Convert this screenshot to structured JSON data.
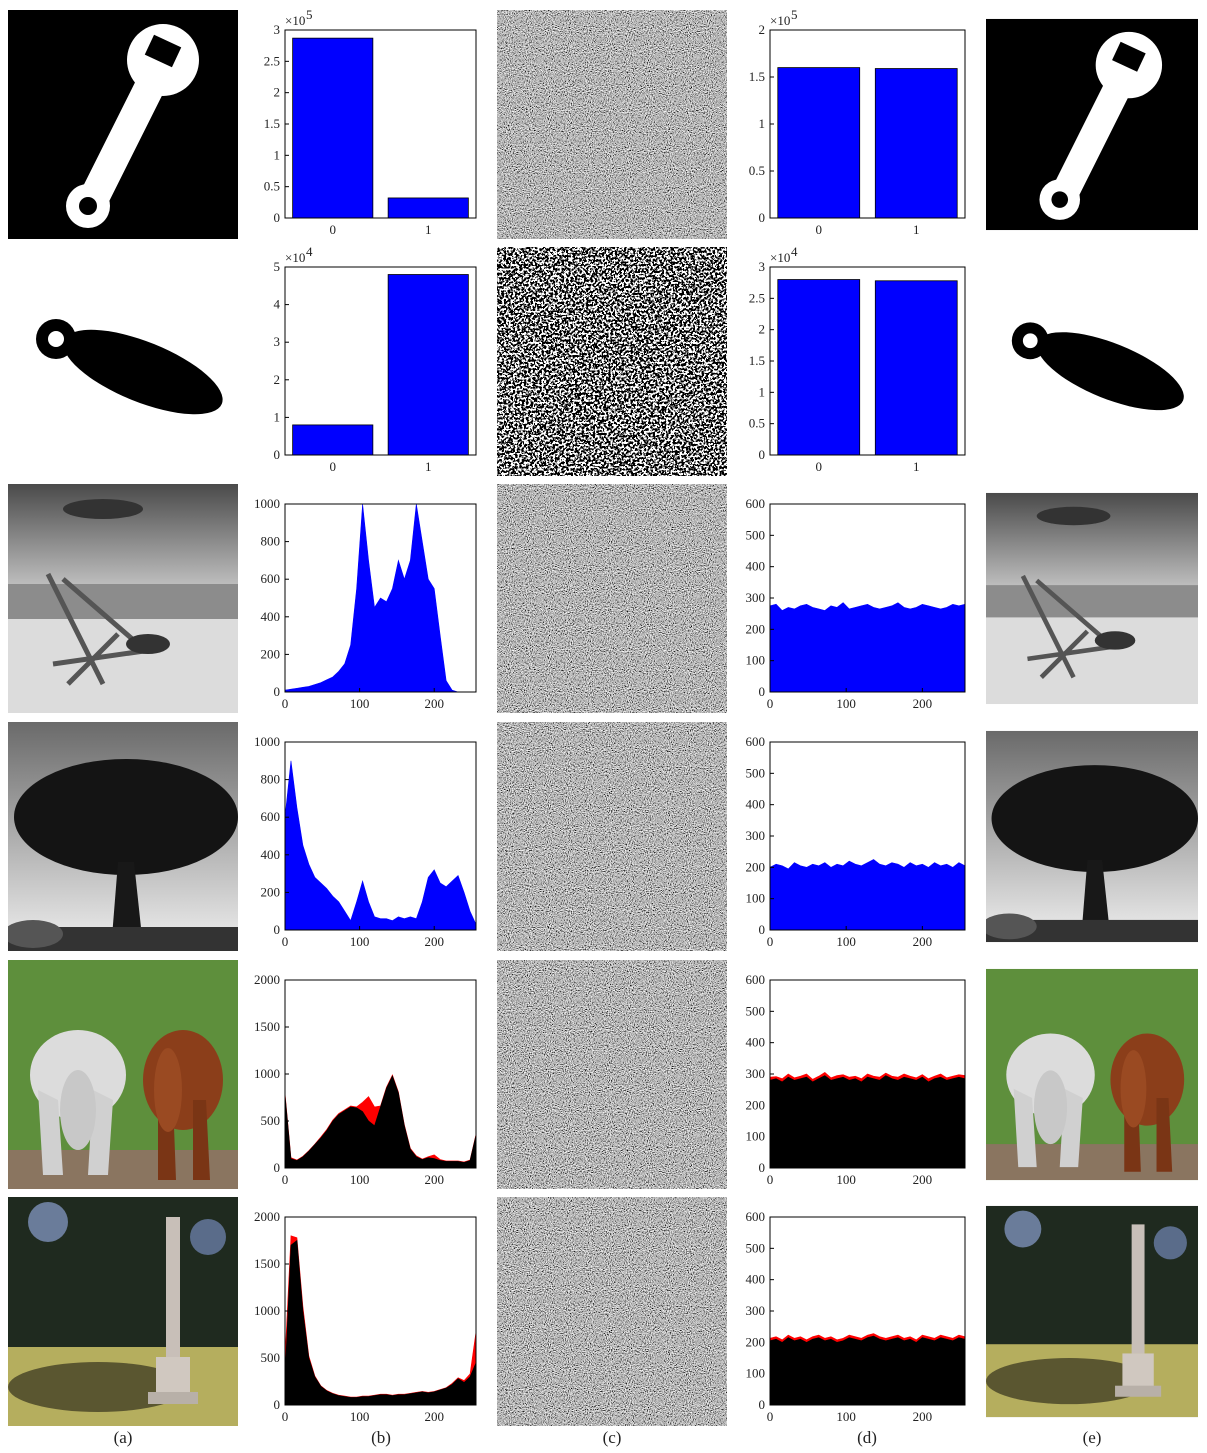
{
  "column_labels": [
    "(a)",
    "(b)",
    "(c)",
    "(d)",
    "(e)"
  ],
  "chart_data": [
    {
      "type": "bar",
      "categories": [
        "0",
        "1"
      ],
      "values": [
        2.87,
        0.32
      ],
      "color": "#0000ff",
      "ylim": [
        0,
        3
      ],
      "yticks": [
        0,
        0.5,
        1,
        1.5,
        2,
        2.5,
        3
      ],
      "y_multiplier": "×10",
      "y_multiplier_exponent": "5"
    },
    {
      "type": "bar",
      "categories": [
        "0",
        "1"
      ],
      "values": [
        1.6,
        1.59
      ],
      "color": "#0000ff",
      "ylim": [
        0,
        2
      ],
      "yticks": [
        0,
        0.5,
        1,
        1.5,
        2
      ],
      "y_multiplier": "×10",
      "y_multiplier_exponent": "5"
    },
    {
      "type": "bar",
      "categories": [
        "0",
        "1"
      ],
      "values": [
        0.8,
        4.8
      ],
      "color": "#0000ff",
      "ylim": [
        0,
        5
      ],
      "yticks": [
        0,
        1,
        2,
        3,
        4,
        5
      ],
      "y_multiplier": "×10",
      "y_multiplier_exponent": "4"
    },
    {
      "type": "bar",
      "categories": [
        "0",
        "1"
      ],
      "values": [
        2.8,
        2.78
      ],
      "color": "#0000ff",
      "ylim": [
        0,
        3
      ],
      "yticks": [
        0,
        0.5,
        1,
        1.5,
        2,
        2.5,
        3
      ],
      "y_multiplier": "×10",
      "y_multiplier_exponent": "4"
    },
    {
      "type": "area",
      "x": [
        0,
        8,
        16,
        24,
        32,
        40,
        48,
        56,
        64,
        72,
        80,
        88,
        96,
        104,
        112,
        120,
        128,
        136,
        144,
        152,
        160,
        168,
        176,
        184,
        192,
        200,
        208,
        216,
        224,
        232,
        240,
        248,
        256
      ],
      "xlim": [
        0,
        256
      ],
      "xticks": [
        0,
        100,
        200
      ],
      "ylim": [
        0,
        1000
      ],
      "yticks": [
        0,
        200,
        400,
        600,
        800,
        1000
      ],
      "series": [
        {
          "color": "#0000ff",
          "values": [
            10,
            15,
            20,
            25,
            30,
            40,
            50,
            65,
            80,
            110,
            150,
            250,
            550,
            1000,
            700,
            450,
            500,
            480,
            550,
            700,
            600,
            700,
            1000,
            800,
            600,
            550,
            300,
            60,
            10,
            0,
            0,
            0,
            0
          ]
        }
      ]
    },
    {
      "type": "area",
      "x": [
        0,
        8,
        16,
        24,
        32,
        40,
        48,
        56,
        64,
        72,
        80,
        88,
        96,
        104,
        112,
        120,
        128,
        136,
        144,
        152,
        160,
        168,
        176,
        184,
        192,
        200,
        208,
        216,
        224,
        232,
        240,
        248,
        256
      ],
      "xlim": [
        0,
        256
      ],
      "xticks": [
        0,
        100,
        200
      ],
      "ylim": [
        0,
        600
      ],
      "yticks": [
        0,
        100,
        200,
        300,
        400,
        500,
        600
      ],
      "series": [
        {
          "color": "#0000ff",
          "values": [
            275,
            280,
            260,
            270,
            265,
            275,
            280,
            270,
            265,
            260,
            275,
            270,
            285,
            265,
            270,
            275,
            280,
            270,
            265,
            270,
            275,
            285,
            270,
            265,
            270,
            280,
            275,
            270,
            265,
            270,
            280,
            275,
            280
          ]
        }
      ]
    },
    {
      "type": "area",
      "x": [
        0,
        8,
        16,
        24,
        32,
        40,
        48,
        56,
        64,
        72,
        80,
        88,
        96,
        104,
        112,
        120,
        128,
        136,
        144,
        152,
        160,
        168,
        176,
        184,
        192,
        200,
        208,
        216,
        224,
        232,
        240,
        248,
        256
      ],
      "xlim": [
        0,
        256
      ],
      "xticks": [
        0,
        100,
        200
      ],
      "ylim": [
        0,
        1000
      ],
      "yticks": [
        0,
        200,
        400,
        600,
        800,
        1000
      ],
      "series": [
        {
          "color": "#0000ff",
          "values": [
            600,
            900,
            650,
            450,
            350,
            280,
            250,
            220,
            180,
            150,
            100,
            50,
            150,
            260,
            150,
            70,
            60,
            60,
            50,
            70,
            60,
            70,
            60,
            150,
            280,
            320,
            250,
            230,
            260,
            290,
            200,
            100,
            30
          ]
        }
      ]
    },
    {
      "type": "area",
      "x": [
        0,
        8,
        16,
        24,
        32,
        40,
        48,
        56,
        64,
        72,
        80,
        88,
        96,
        104,
        112,
        120,
        128,
        136,
        144,
        152,
        160,
        168,
        176,
        184,
        192,
        200,
        208,
        216,
        224,
        232,
        240,
        248,
        256
      ],
      "xlim": [
        0,
        256
      ],
      "xticks": [
        0,
        100,
        200
      ],
      "ylim": [
        0,
        600
      ],
      "yticks": [
        0,
        100,
        200,
        300,
        400,
        500,
        600
      ],
      "series": [
        {
          "color": "#0000ff",
          "values": [
            200,
            210,
            205,
            195,
            215,
            205,
            200,
            210,
            205,
            215,
            200,
            210,
            205,
            220,
            210,
            205,
            215,
            225,
            210,
            205,
            215,
            210,
            200,
            215,
            205,
            210,
            200,
            215,
            205,
            210,
            200,
            215,
            205
          ]
        }
      ]
    },
    {
      "type": "area",
      "x": [
        0,
        8,
        16,
        24,
        32,
        40,
        48,
        56,
        64,
        72,
        80,
        88,
        96,
        104,
        112,
        120,
        128,
        136,
        144,
        152,
        160,
        168,
        176,
        184,
        192,
        200,
        208,
        216,
        224,
        232,
        240,
        248,
        256
      ],
      "xlim": [
        0,
        256
      ],
      "xticks": [
        0,
        100,
        200
      ],
      "ylim": [
        0,
        2000
      ],
      "yticks": [
        0,
        500,
        1000,
        1500,
        2000
      ],
      "series": [
        {
          "color": "#ff0000",
          "values": [
            800,
            110,
            85,
            125,
            185,
            255,
            330,
            410,
            510,
            580,
            620,
            660,
            650,
            700,
            760,
            650,
            660,
            860,
            990,
            810,
            460,
            210,
            130,
            95,
            120,
            140,
            90,
            75,
            75,
            75,
            65,
            85,
            360
          ]
        },
        {
          "color": "#000000",
          "values": [
            780,
            100,
            80,
            120,
            180,
            250,
            320,
            400,
            500,
            570,
            610,
            650,
            640,
            600,
            500,
            450,
            650,
            850,
            980,
            800,
            450,
            200,
            120,
            90,
            110,
            100,
            80,
            70,
            70,
            70,
            60,
            80,
            350
          ]
        }
      ]
    },
    {
      "type": "area",
      "x": [
        0,
        8,
        16,
        24,
        32,
        40,
        48,
        56,
        64,
        72,
        80,
        88,
        96,
        104,
        112,
        120,
        128,
        136,
        144,
        152,
        160,
        168,
        176,
        184,
        192,
        200,
        208,
        216,
        224,
        232,
        240,
        248,
        256
      ],
      "xlim": [
        0,
        256
      ],
      "xticks": [
        0,
        100,
        200
      ],
      "ylim": [
        0,
        600
      ],
      "yticks": [
        0,
        100,
        200,
        300,
        400,
        500,
        600
      ],
      "series": [
        {
          "color": "#ff0000",
          "values": [
            290,
            292,
            285,
            300,
            288,
            293,
            300,
            283,
            293,
            305,
            288,
            295,
            298,
            290,
            293,
            285,
            300,
            293,
            290,
            303,
            293,
            290,
            300,
            293,
            288,
            298,
            285,
            293,
            300,
            288,
            293,
            298,
            295
          ]
        },
        {
          "color": "#000000",
          "values": [
            280,
            285,
            275,
            290,
            280,
            285,
            290,
            275,
            285,
            295,
            280,
            285,
            290,
            280,
            285,
            275,
            290,
            285,
            280,
            295,
            285,
            280,
            290,
            285,
            280,
            290,
            275,
            285,
            290,
            280,
            285,
            290,
            285
          ]
        }
      ]
    },
    {
      "type": "area",
      "x": [
        0,
        8,
        16,
        24,
        32,
        40,
        48,
        56,
        64,
        72,
        80,
        88,
        96,
        104,
        112,
        120,
        128,
        136,
        144,
        152,
        160,
        168,
        176,
        184,
        192,
        200,
        208,
        216,
        224,
        232,
        240,
        248,
        256
      ],
      "xlim": [
        0,
        256
      ],
      "xticks": [
        0,
        100,
        200
      ],
      "ylim": [
        0,
        2000
      ],
      "yticks": [
        0,
        500,
        1000,
        1500,
        2000
      ],
      "series": [
        {
          "color": "#ff0000",
          "values": [
            500,
            1800,
            1780,
            1050,
            520,
            310,
            205,
            155,
            125,
            105,
            95,
            85,
            85,
            95,
            95,
            105,
            115,
            115,
            105,
            115,
            115,
            125,
            135,
            145,
            135,
            145,
            165,
            185,
            230,
            290,
            260,
            330,
            780
          ]
        },
        {
          "color": "#000000",
          "values": [
            300,
            1700,
            1750,
            1000,
            500,
            300,
            200,
            150,
            120,
            100,
            90,
            80,
            80,
            90,
            90,
            100,
            110,
            110,
            100,
            110,
            110,
            120,
            130,
            140,
            130,
            140,
            160,
            180,
            220,
            280,
            240,
            300,
            450
          ]
        }
      ]
    },
    {
      "type": "area",
      "x": [
        0,
        8,
        16,
        24,
        32,
        40,
        48,
        56,
        64,
        72,
        80,
        88,
        96,
        104,
        112,
        120,
        128,
        136,
        144,
        152,
        160,
        168,
        176,
        184,
        192,
        200,
        208,
        216,
        224,
        232,
        240,
        248,
        256
      ],
      "xlim": [
        0,
        256
      ],
      "xticks": [
        0,
        100,
        200
      ],
      "ylim": [
        0,
        600
      ],
      "yticks": [
        0,
        100,
        200,
        300,
        400,
        500,
        600
      ],
      "series": [
        {
          "color": "#ff0000",
          "values": [
            213,
            218,
            208,
            223,
            213,
            218,
            208,
            218,
            223,
            213,
            218,
            208,
            213,
            223,
            218,
            213,
            223,
            228,
            218,
            213,
            218,
            223,
            213,
            218,
            208,
            223,
            218,
            213,
            223,
            218,
            213,
            223,
            218
          ]
        },
        {
          "color": "#000000",
          "values": [
            205,
            210,
            200,
            215,
            205,
            210,
            200,
            210,
            215,
            205,
            210,
            200,
            205,
            215,
            210,
            205,
            215,
            220,
            210,
            205,
            210,
            215,
            205,
            210,
            200,
            215,
            210,
            205,
            215,
            210,
            205,
            215,
            210
          ]
        }
      ]
    }
  ]
}
